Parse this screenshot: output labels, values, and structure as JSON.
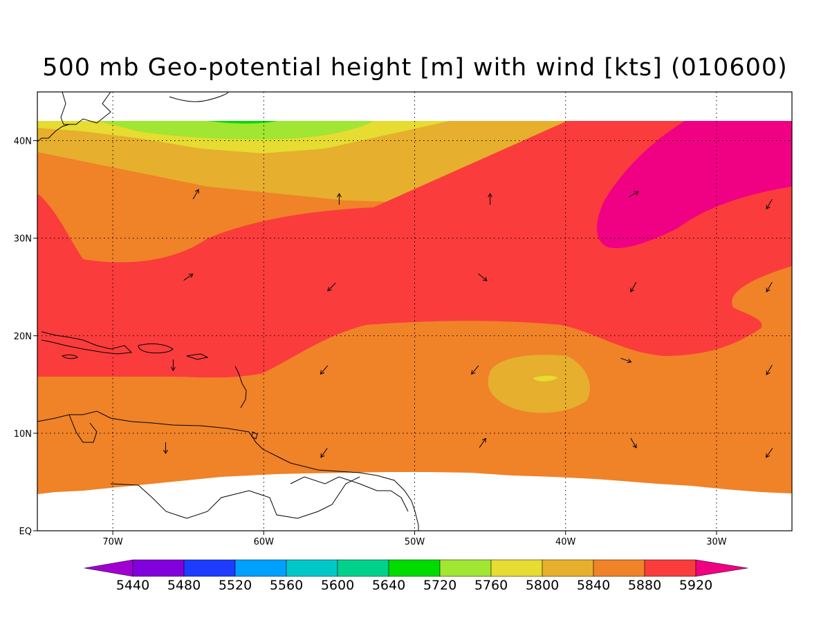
{
  "title": "500 mb Geo-potential height [m] with wind [kts] (010600)",
  "map": {
    "lon_range": [
      -75,
      -25
    ],
    "lat_range": [
      0,
      45
    ],
    "data_lat_max": 42,
    "lon_ticks": [
      {
        "value": -70,
        "label": "70W"
      },
      {
        "value": -60,
        "label": "60W"
      },
      {
        "value": -50,
        "label": "50W"
      },
      {
        "value": -40,
        "label": "40W"
      },
      {
        "value": -30,
        "label": "30W"
      }
    ],
    "lat_ticks": [
      {
        "value": 0,
        "label": "EQ"
      },
      {
        "value": 10,
        "label": "10N"
      },
      {
        "value": 20,
        "label": "20N"
      },
      {
        "value": 30,
        "label": "30N"
      },
      {
        "value": 40,
        "label": "40N"
      }
    ],
    "grid_style": "dotted"
  },
  "colorbar": {
    "levels": [
      "5440",
      "5480",
      "5520",
      "5560",
      "5600",
      "5640",
      "5720",
      "5760",
      "5800",
      "5840",
      "5880",
      "5920"
    ],
    "colors": [
      "#a000d0",
      "#8200dc",
      "#1e3cff",
      "#00a0ff",
      "#00c8c8",
      "#00d28c",
      "#00dc00",
      "#a0e632",
      "#e6dc32",
      "#e6af2d",
      "#f08228",
      "#fa3c3c",
      "#f00082"
    ],
    "extend": "both"
  },
  "height_colors": {
    "c5760": "#a0e632",
    "c5720": "#00dc00",
    "c5800": "#e6dc32",
    "c5840": "#e6af2d",
    "c5880": "#f08228",
    "c5920": "#fa3c3c",
    "c5960": "#f00082"
  },
  "wind_vectors": [
    {
      "lon": -64.5,
      "lat": 34.5,
      "dir": 60
    },
    {
      "lon": -55,
      "lat": 34,
      "dir": 90
    },
    {
      "lon": -45,
      "lat": 34,
      "dir": 90
    },
    {
      "lon": -35.5,
      "lat": 34.5,
      "dir": 30
    },
    {
      "lon": -26.5,
      "lat": 33.5,
      "dir": 240
    },
    {
      "lon": -65,
      "lat": 26,
      "dir": 35
    },
    {
      "lon": -55.5,
      "lat": 25,
      "dir": 225
    },
    {
      "lon": -45.5,
      "lat": 26,
      "dir": 320
    },
    {
      "lon": -35.5,
      "lat": 25,
      "dir": 240
    },
    {
      "lon": -26.5,
      "lat": 25,
      "dir": 240
    },
    {
      "lon": -66,
      "lat": 17,
      "dir": 270
    },
    {
      "lon": -56,
      "lat": 16.5,
      "dir": 230
    },
    {
      "lon": -46,
      "lat": 16.5,
      "dir": 230
    },
    {
      "lon": -36,
      "lat": 17.5,
      "dir": 340
    },
    {
      "lon": -26.5,
      "lat": 16.5,
      "dir": 240
    },
    {
      "lon": -66.5,
      "lat": 8.5,
      "dir": 270
    },
    {
      "lon": -56,
      "lat": 8,
      "dir": 235
    },
    {
      "lon": -45.5,
      "lat": 9,
      "dir": 55
    },
    {
      "lon": -35.5,
      "lat": 9,
      "dir": 300
    },
    {
      "lon": -26.5,
      "lat": 8,
      "dir": 235
    }
  ]
}
